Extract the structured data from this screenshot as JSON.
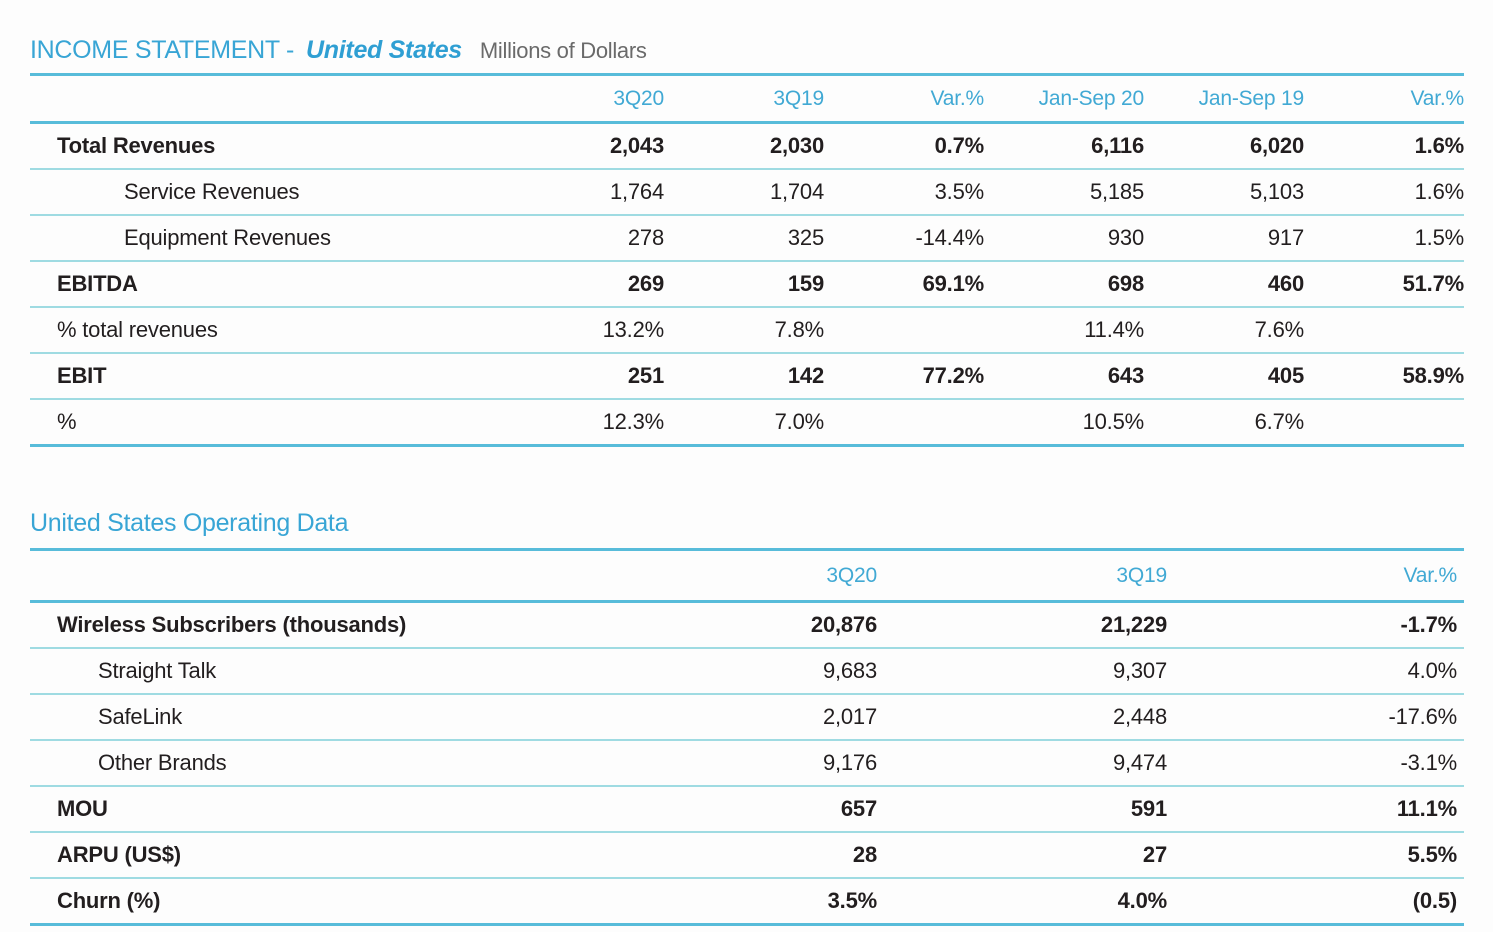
{
  "colors": {
    "accent_cyan": "#38a5d5",
    "line_strong": "#58bcda",
    "line_light": "#9fdbe2",
    "text_dark": "#221e1f",
    "text_gray": "#6a6a6a"
  },
  "income_statement": {
    "title": "INCOME STATEMENT -",
    "region": "United States",
    "unit": "Millions of Dollars",
    "columns": [
      "3Q20",
      "3Q19",
      "Var.%",
      "Jan-Sep 20",
      "Jan-Sep 19",
      "Var.%"
    ],
    "rows": [
      {
        "label": "Total Revenues",
        "values": [
          "2,043",
          "2,030",
          "0.7%",
          "6,116",
          "6,020",
          "1.6%"
        ]
      },
      {
        "label": "Service Revenues",
        "values": [
          "1,764",
          "1,704",
          "3.5%",
          "5,185",
          "5,103",
          "1.6%"
        ]
      },
      {
        "label": "Equipment Revenues",
        "values": [
          "278",
          "325",
          "-14.4%",
          "930",
          "917",
          "1.5%"
        ]
      },
      {
        "label": "EBITDA",
        "values": [
          "269",
          "159",
          "69.1%",
          "698",
          "460",
          "51.7%"
        ]
      },
      {
        "label": "% total revenues",
        "values": [
          "13.2%",
          "7.8%",
          "",
          "11.4%",
          "7.6%",
          ""
        ]
      },
      {
        "label": "EBIT",
        "values": [
          "251",
          "142",
          "77.2%",
          "643",
          "405",
          "58.9%"
        ]
      },
      {
        "label": "%",
        "values": [
          "12.3%",
          "7.0%",
          "",
          "10.5%",
          "6.7%",
          ""
        ]
      }
    ]
  },
  "operating_data": {
    "title": "United States Operating Data",
    "columns": [
      "3Q20",
      "3Q19",
      "Var.%"
    ],
    "rows": [
      {
        "label": "Wireless Subscribers (thousands)",
        "values": [
          "20,876",
          "21,229",
          "-1.7%"
        ]
      },
      {
        "label": "Straight Talk",
        "values": [
          "9,683",
          "9,307",
          "4.0%"
        ]
      },
      {
        "label": "SafeLink",
        "values": [
          "2,017",
          "2,448",
          "-17.6%"
        ]
      },
      {
        "label": "Other Brands",
        "values": [
          "9,176",
          "9,474",
          "-3.1%"
        ]
      },
      {
        "label": "MOU",
        "values": [
          "657",
          "591",
          "11.1%"
        ]
      },
      {
        "label": "ARPU (US$)",
        "values": [
          "28",
          "27",
          "5.5%"
        ]
      },
      {
        "label": "Churn (%)",
        "values": [
          "3.5%",
          "4.0%",
          "(0.5)"
        ]
      }
    ]
  }
}
